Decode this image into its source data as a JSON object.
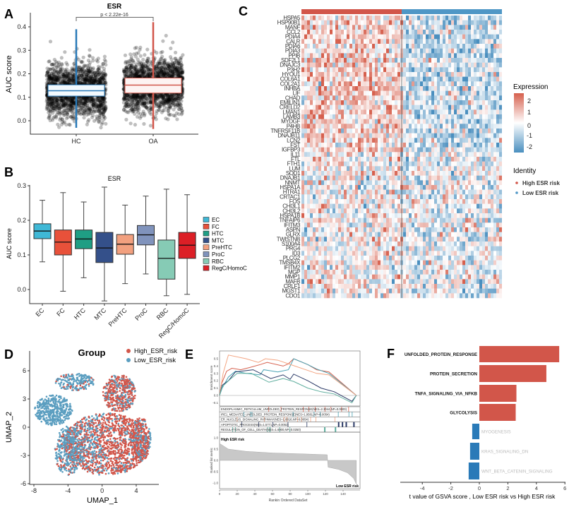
{
  "panels": {
    "A": "A",
    "B": "B",
    "C": "C",
    "D": "D",
    "E": "E",
    "F": "F"
  },
  "chart_data": [
    {
      "panel": "A",
      "type": "box",
      "title": "ESR",
      "ylabel": "AUC score",
      "ylim": [
        -0.05,
        0.45
      ],
      "yticks": [
        "0.0",
        "0.1",
        "0.2",
        "0.3",
        "0.4"
      ],
      "categories": [
        "HC",
        "OA"
      ],
      "colors": [
        "#2a7ab8",
        "#d2564a"
      ],
      "boxes": [
        {
          "min": -0.03,
          "q1": 0.105,
          "median": 0.128,
          "q3": 0.153,
          "max": 0.39
        },
        {
          "min": -0.035,
          "q1": 0.118,
          "median": 0.152,
          "q3": 0.182,
          "max": 0.42
        }
      ],
      "jitter_points": true,
      "annotation": "p < 2.22e-16"
    },
    {
      "panel": "B",
      "type": "box",
      "title": "ESR",
      "ylabel": "AUC score",
      "ylim": [
        -0.04,
        0.3
      ],
      "yticks": [
        "0.0",
        "0.1",
        "0.2",
        "0.3"
      ],
      "categories": [
        "EC",
        "FC",
        "HTC",
        "MTC",
        "PreHTC",
        "ProC",
        "RBC",
        "RegC/HomoC"
      ],
      "colors": [
        "#3fb8d6",
        "#e8513a",
        "#1f9e84",
        "#34508a",
        "#f2a07f",
        "#8093bc",
        "#86cbb5",
        "#dc1f26"
      ],
      "boxes": [
        {
          "min": 0.08,
          "q1": 0.147,
          "median": 0.169,
          "q3": 0.19,
          "max": 0.258
        },
        {
          "min": -0.005,
          "q1": 0.1,
          "median": 0.137,
          "q3": 0.172,
          "max": 0.28
        },
        {
          "min": 0.034,
          "q1": 0.118,
          "median": 0.146,
          "q3": 0.172,
          "max": 0.253
        },
        {
          "min": -0.033,
          "q1": 0.078,
          "median": 0.12,
          "q3": 0.165,
          "max": 0.296
        },
        {
          "min": 0.017,
          "q1": 0.102,
          "median": 0.131,
          "q3": 0.159,
          "max": 0.244
        },
        {
          "min": 0.045,
          "q1": 0.129,
          "median": 0.158,
          "q3": 0.185,
          "max": 0.27
        },
        {
          "min": -0.018,
          "q1": 0.03,
          "median": 0.09,
          "q3": 0.143,
          "max": 0.29
        },
        {
          "min": -0.014,
          "q1": 0.09,
          "median": 0.128,
          "q3": 0.165,
          "max": 0.274
        }
      ],
      "legend": [
        "EC",
        "FC",
        "HTC",
        "MTC",
        "PreHTC",
        "ProC",
        "RBC",
        "RegC/HomoC"
      ],
      "legend_position": "right"
    },
    {
      "panel": "C",
      "type": "heatmap",
      "genes": [
        "HSPA5",
        "HSP90B1",
        "MANF",
        "CCL2",
        "PDIA4",
        "CALR",
        "PDIA6",
        "PDIA3",
        "PPIB",
        "SDF2L1",
        "DNAJC3",
        "P3H2",
        "HYOU1",
        "COL6A1",
        "COL2A1",
        "INHBA",
        "LIF",
        "CHAD",
        "EMILIN1",
        "CRELD2",
        "LMAN1",
        "LAMB3",
        "MYDGF",
        "P4HB",
        "TNFRSF11B",
        "DNAJB11",
        "LCN2",
        "FST",
        "IGFBP3",
        "IL11",
        "FTL",
        "FTH1",
        "LUM",
        "SOD1",
        "DNAJB1",
        "NNMT",
        "HSPA1A",
        "HTRA1",
        "CRTAC1",
        "FOS",
        "CHI3L1",
        "CHI3L2",
        "HSPA1B",
        "TNFAIP6",
        "IFITM3",
        "ASPN",
        "GLRX",
        "TWISTNB",
        "S100A4",
        "PRG4",
        "ID3",
        "PLCG2",
        "TMSB4X",
        "IFITM2",
        "MGP",
        "MMP1",
        "MAFB",
        "CRLF1",
        "MGST1",
        "CDO1"
      ],
      "groups": [
        "High ESR risk",
        "Low ESR risk"
      ],
      "group_colors": [
        "#d2564a",
        "#4f97c6"
      ],
      "color_scale": {
        "min": -2,
        "mid": 0,
        "max": 2,
        "low": "#4a8fbf",
        "midcolor": "#ffffff",
        "high": "#d6604d"
      },
      "legend_title": "Expression",
      "legend_ticks": [
        "2",
        "1",
        "0",
        "-1",
        "-2"
      ],
      "identity_title": "Identity"
    },
    {
      "panel": "D",
      "type": "scatter",
      "title": "Group",
      "xlabel": "UMAP_1",
      "ylabel": "UMAP_2",
      "xticks": [
        "-8",
        "-4",
        "0",
        "4"
      ],
      "yticks": [
        "6",
        "3",
        "0",
        "-3",
        "-6"
      ],
      "xlim": [
        -8.5,
        6.5
      ],
      "ylim": [
        -6,
        7
      ],
      "series": [
        {
          "name": "High_ESR_risk",
          "color": "#d2564a"
        },
        {
          "name": "Low_ESR_risk",
          "color": "#5b9ec0"
        }
      ],
      "legend_position": "top-right"
    },
    {
      "panel": "E",
      "type": "line",
      "ylabel": "Enrichment score",
      "ylabel2": "Ranked list metric",
      "xlabel": "Rankin Ordered DataSet",
      "yticks": [
        "0.5",
        "0.4",
        "0.3",
        "0.2",
        "0.1",
        "0.0",
        "-0.1"
      ],
      "yticks2": [
        "1.0",
        "0.5",
        "0.0",
        "-0.5",
        "-1.0"
      ],
      "xticks": [
        "0",
        "20",
        "40",
        "60",
        "80",
        "100",
        "120",
        "140"
      ],
      "xlim": [
        0,
        155
      ],
      "series": [
        {
          "name": "ENDOPLASMIC_RETICULUM_UNFOLDED_PROTEIN_RESPONSE(NES=2.3044,NP=0.0000)",
          "color": "#d6604d",
          "points": [
            [
              0,
              0
            ],
            [
              2,
              0.15
            ],
            [
              8,
              0.33
            ],
            [
              14,
              0.37
            ],
            [
              24,
              0.35
            ],
            [
              34,
              0.38
            ],
            [
              46,
              0.42
            ],
            [
              54,
              0.45
            ],
            [
              72,
              0.4
            ],
            [
              78,
              0.43
            ],
            [
              84,
              0.5
            ],
            [
              100,
              0.42
            ],
            [
              110,
              0.35
            ],
            [
              124,
              0.32
            ],
            [
              155,
              0.0
            ]
          ]
        },
        {
          "name": "IRE1_MEDIATED_UNFOLDED_PROTEIN_RESPONSE(NES=1.9581,NP=0.0054)",
          "color": "#4aa3b5",
          "points": [
            [
              0,
              0
            ],
            [
              3,
              0.1
            ],
            [
              10,
              0.25
            ],
            [
              18,
              0.33
            ],
            [
              30,
              0.3
            ],
            [
              46,
              0.28
            ],
            [
              50,
              0.35
            ],
            [
              66,
              0.32
            ],
            [
              78,
              0.35
            ],
            [
              84,
              0.5
            ],
            [
              100,
              0.42
            ],
            [
              110,
              0.36
            ],
            [
              124,
              0.3
            ],
            [
              155,
              0.0
            ]
          ]
        },
        {
          "name": "ER_NUCLEUS_SIGNALING_PATHWAY(NES=1.8816,NP=0.0054)",
          "color": "#f4a582",
          "points": [
            [
              0,
              0
            ],
            [
              4,
              0.3
            ],
            [
              10,
              0.55
            ],
            [
              30,
              0.5
            ],
            [
              44,
              0.45
            ],
            [
              52,
              0.5
            ],
            [
              66,
              0.48
            ],
            [
              78,
              0.43
            ],
            [
              110,
              0.3
            ],
            [
              124,
              0.28
            ],
            [
              155,
              0.0
            ]
          ]
        },
        {
          "name": "APOPTOTIC_PROCESS(NES=1.5771,NP=0.0052)",
          "color": "#2b3a67",
          "points": [
            [
              0,
              0
            ],
            [
              3,
              0.14
            ],
            [
              10,
              0.2
            ],
            [
              18,
              0.32
            ],
            [
              38,
              0.35
            ],
            [
              58,
              0.23
            ],
            [
              72,
              0.28
            ],
            [
              80,
              0.22
            ],
            [
              84,
              0.29
            ],
            [
              100,
              0.2
            ],
            [
              115,
              0.1
            ],
            [
              130,
              0.05
            ],
            [
              150,
              -0.08
            ],
            [
              155,
              0.0
            ]
          ]
        },
        {
          "name": "REGULATION_OF_CELL_DEATH(NES=1.6900,NP=0.0250)",
          "color": "#5fae9e",
          "points": [
            [
              0,
              0
            ],
            [
              3,
              0.12
            ],
            [
              12,
              0.22
            ],
            [
              20,
              0.3
            ],
            [
              36,
              0.3
            ],
            [
              56,
              0.18
            ],
            [
              72,
              0.23
            ],
            [
              84,
              0.19
            ],
            [
              100,
              0.1
            ],
            [
              115,
              0.05
            ],
            [
              130,
              0.02
            ],
            [
              150,
              -0.1
            ],
            [
              155,
              0.0
            ]
          ]
        }
      ],
      "ranked_metric": {
        "labels": [
          "High ESR risk",
          "Low ESR risk"
        ],
        "points": [
          [
            0,
            0.75
          ],
          [
            10,
            0.5
          ],
          [
            30,
            0.4
          ],
          [
            60,
            0.33
          ],
          [
            100,
            0.28
          ],
          [
            122,
            0.25
          ],
          [
            123,
            -0.3
          ],
          [
            135,
            -0.4
          ],
          [
            145,
            -0.55
          ],
          [
            152,
            -0.8
          ],
          [
            155,
            -1.05
          ]
        ]
      }
    },
    {
      "panel": "F",
      "type": "bar",
      "orientation": "horizontal",
      "xlabel": "t value of GSVA score , Low ESR risk vs High ESR risk",
      "xticks": [
        "-4",
        "-2",
        "0",
        "2",
        "4",
        "6"
      ],
      "xlim": [
        -5.5,
        6.2
      ],
      "categories": [
        "UNFOLDED_PROTEIN_RESPONSE",
        "PROTEIN_SECRETION",
        "TNFA_SIGNALING_VIA_NFKB",
        "GLYCOLYSIS",
        "MYOGENESIS",
        "KRAS_SIGNALING_DN",
        "WNT_BETA_CATENIN_SIGNALING"
      ],
      "values": [
        5.6,
        4.7,
        2.6,
        2.55,
        -0.5,
        -0.65,
        -0.75
      ],
      "colors": {
        "positive": "#d2564a",
        "negative": "#2a7ab8"
      }
    }
  ]
}
